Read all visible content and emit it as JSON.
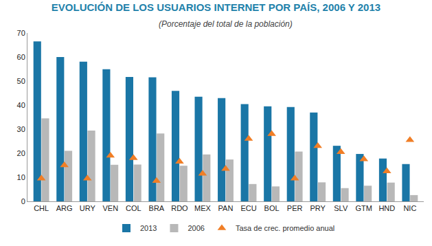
{
  "chart_data": {
    "type": "bar",
    "title": "EVOLUCIÓN DE LOS USUARIOS INTERNET POR PAÍS, 2006 Y 2013",
    "subtitle": "(Porcentaje del total de la población)",
    "categories": [
      "CHL",
      "ARG",
      "URY",
      "VEN",
      "COL",
      "BRA",
      "RDO",
      "MEX",
      "PAN",
      "ECU",
      "BOL",
      "PER",
      "PRY",
      "SLV",
      "GTM",
      "HND",
      "NIC"
    ],
    "series": [
      {
        "name": "2013",
        "type": "bar",
        "color": "#1a76a6",
        "values": [
          66.5,
          60,
          58.1,
          54.9,
          51.7,
          51.6,
          45.9,
          43.5,
          42.9,
          40.4,
          39.5,
          39.2,
          36.9,
          23.1,
          19.7,
          17.8,
          15.5
        ]
      },
      {
        "name": "2006",
        "type": "bar",
        "color": "#b8b8b8",
        "values": [
          34.5,
          21,
          29.4,
          15.2,
          15.3,
          28.2,
          14.8,
          19.5,
          17.4,
          7.2,
          6.2,
          20.7,
          7.9,
          5.5,
          6.5,
          7.8,
          2.6
        ]
      },
      {
        "name": "Tasa de crec. promedio anual",
        "type": "scatter",
        "marker": "triangle-up",
        "color": "#f07e26",
        "values": [
          9.5,
          15,
          9.5,
          19,
          18,
          8.5,
          16.5,
          11.5,
          13.5,
          26,
          28,
          9.5,
          23,
          20.5,
          17.5,
          12.5,
          25.5
        ]
      }
    ],
    "ylim": [
      0,
      70
    ],
    "yticks": [
      0,
      10,
      20,
      30,
      40,
      50,
      60,
      70
    ],
    "grid": false,
    "legend": "bottom"
  }
}
